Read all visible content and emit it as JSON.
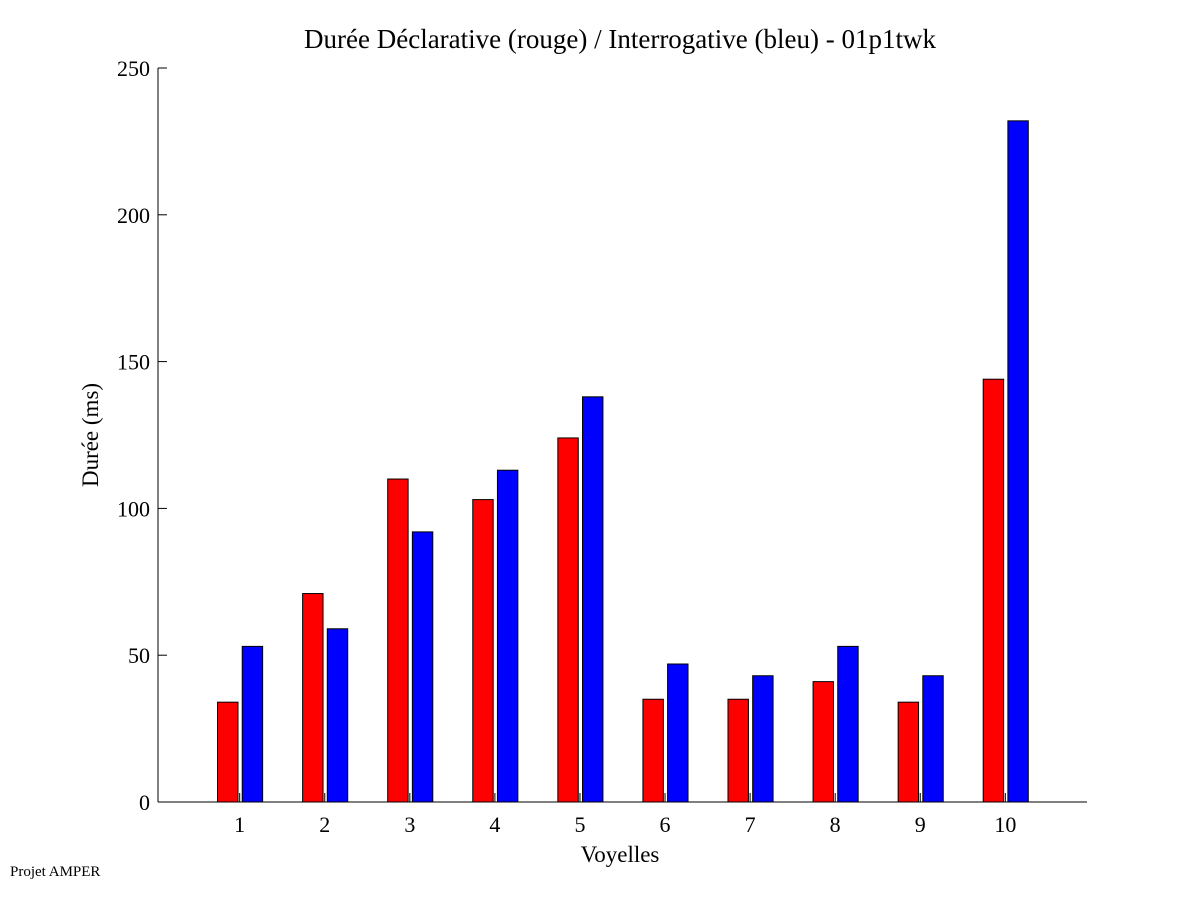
{
  "chart_data": {
    "type": "bar",
    "title": "Durée Déclarative (rouge) / Interrogative (bleu) - 01p1twk",
    "xlabel": "Voyelles",
    "ylabel": "Durée (ms)",
    "categories": [
      "1",
      "2",
      "3",
      "4",
      "5",
      "6",
      "7",
      "8",
      "9",
      "10"
    ],
    "series": [
      {
        "name": "Déclarative (rouge)",
        "color": "#ff0000",
        "values": [
          34,
          71,
          110,
          103,
          124,
          35,
          35,
          41,
          34,
          144
        ]
      },
      {
        "name": "Interrogative (bleu)",
        "color": "#0000ff",
        "values": [
          53,
          59,
          92,
          113,
          138,
          47,
          43,
          53,
          43,
          232
        ]
      }
    ],
    "ylim": [
      0,
      250
    ],
    "yticks": [
      "0",
      "50",
      "100",
      "150",
      "200",
      "250"
    ],
    "grid": false
  },
  "footer": "Projet AMPER"
}
